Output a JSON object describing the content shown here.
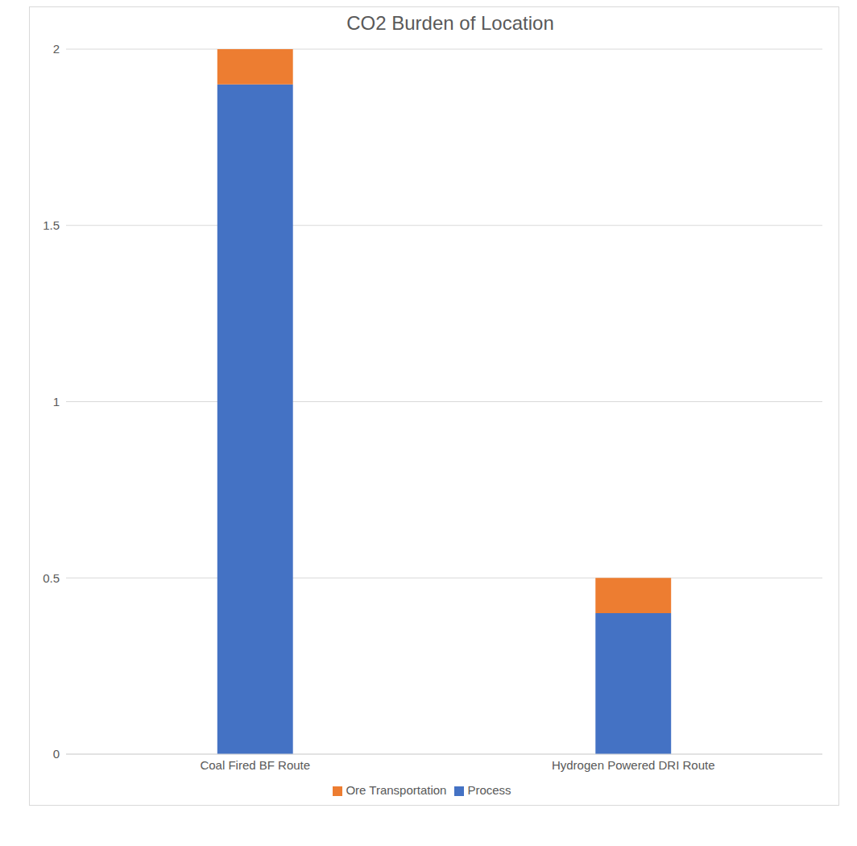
{
  "chart_data": {
    "type": "bar",
    "title": "CO2 Burden of Location",
    "stacked": true,
    "categories": [
      "Coal Fired BF Route",
      "Hydrogen Powered DRI Route"
    ],
    "series": [
      {
        "name": "Process",
        "color": "#4472c4",
        "values": [
          1.9,
          0.4
        ]
      },
      {
        "name": "Ore Transportation",
        "color": "#ed7d31",
        "values": [
          0.1,
          0.1
        ]
      }
    ],
    "ylim": [
      0,
      2
    ],
    "yticks": [
      0,
      0.5,
      1,
      1.5,
      2
    ],
    "grid": true,
    "legend": "bottom"
  }
}
